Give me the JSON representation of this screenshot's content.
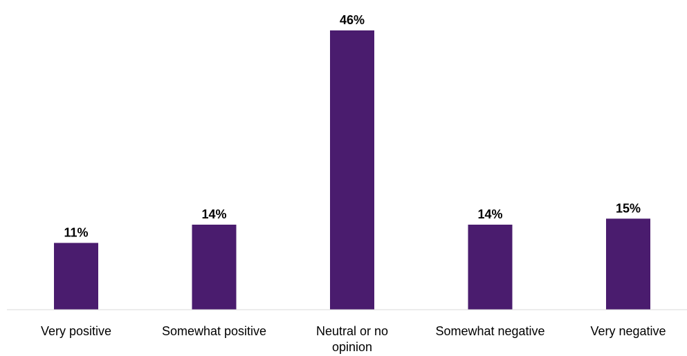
{
  "chart_data": {
    "type": "bar",
    "categories": [
      "Very positive",
      "Somewhat positive",
      "Neutral or no opinion",
      "Somewhat negative",
      "Very negative"
    ],
    "category_lines": [
      [
        "Very positive"
      ],
      [
        "Somewhat positive"
      ],
      [
        "Neutral or no",
        "opinion"
      ],
      [
        "Somewhat negative"
      ],
      [
        "Very negative"
      ]
    ],
    "values": [
      11,
      14,
      46,
      14,
      15
    ],
    "value_labels": [
      "11%",
      "14%",
      "46%",
      "14%",
      "15%"
    ],
    "unit": "%",
    "ylim": [
      0,
      46
    ],
    "grid": false,
    "bar_color": "#4a1c6e"
  }
}
